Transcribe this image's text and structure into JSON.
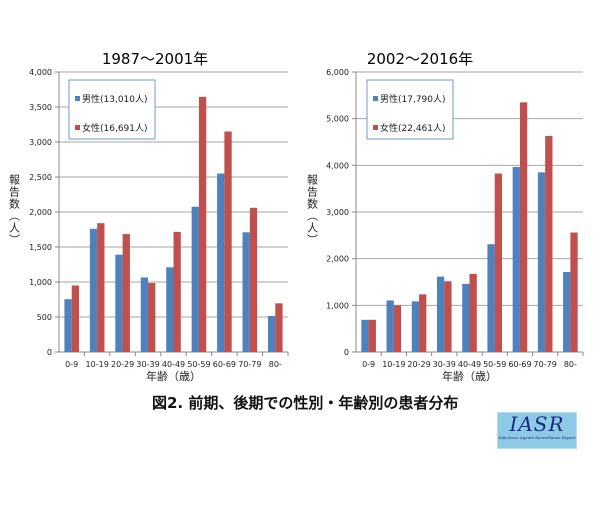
{
  "chart_data": [
    {
      "type": "bar",
      "title": "1987～2001年",
      "xlabel": "年齢（歳）",
      "ylabel": "報告数（人）",
      "ylim": [
        0,
        4000
      ],
      "yticks": [
        0,
        500,
        1000,
        1500,
        2000,
        2500,
        3000,
        3500,
        4000
      ],
      "ytick_labels": [
        "0",
        "500",
        "1,000",
        "1,500",
        "2,000",
        "2,500",
        "3,000",
        "3,500",
        "4,000"
      ],
      "grid": true,
      "legend_placement": "top-left",
      "categories": [
        "0-9",
        "10-19",
        "20-29",
        "30-39",
        "40-49",
        "50-59",
        "60-69",
        "70-79",
        "80-"
      ],
      "series": [
        {
          "name": "男性(13,010人)",
          "color": "#4f81bd",
          "values": [
            755,
            1760,
            1390,
            1065,
            1210,
            2075,
            2550,
            1710,
            515
          ]
        },
        {
          "name": "女性(16,691人)",
          "color": "#c0504d",
          "values": [
            950,
            1840,
            1685,
            985,
            1715,
            3645,
            3150,
            2060,
            695
          ]
        }
      ]
    },
    {
      "type": "bar",
      "title": "2002～2016年",
      "xlabel": "年齢（歳）",
      "ylabel": "報告数（人）",
      "ylim": [
        0,
        6000
      ],
      "yticks": [
        0,
        1000,
        2000,
        3000,
        4000,
        5000,
        6000
      ],
      "ytick_labels": [
        "0",
        "1,000",
        "2,000",
        "3,000",
        "4,000",
        "5,000",
        "6,000"
      ],
      "grid": true,
      "legend_placement": "top-left",
      "categories": [
        "0-9",
        "10-19",
        "20-29",
        "30-39",
        "40-49",
        "50-59",
        "60-69",
        "70-79",
        "80-"
      ],
      "series": [
        {
          "name": "男性(17,790人)",
          "color": "#4f81bd",
          "values": [
            690,
            1105,
            1085,
            1615,
            1460,
            2310,
            3965,
            3850,
            1715
          ]
        },
        {
          "name": "女性(22,461人)",
          "color": "#c0504d",
          "values": [
            690,
            1000,
            1235,
            1515,
            1675,
            3825,
            5350,
            4630,
            2560
          ]
        }
      ]
    }
  ],
  "caption": "図2. 前期、後期での性別・年齢別の患者分布",
  "logo": {
    "text": "IASR",
    "subtext": "Infectious Agents Surveillance Report"
  }
}
